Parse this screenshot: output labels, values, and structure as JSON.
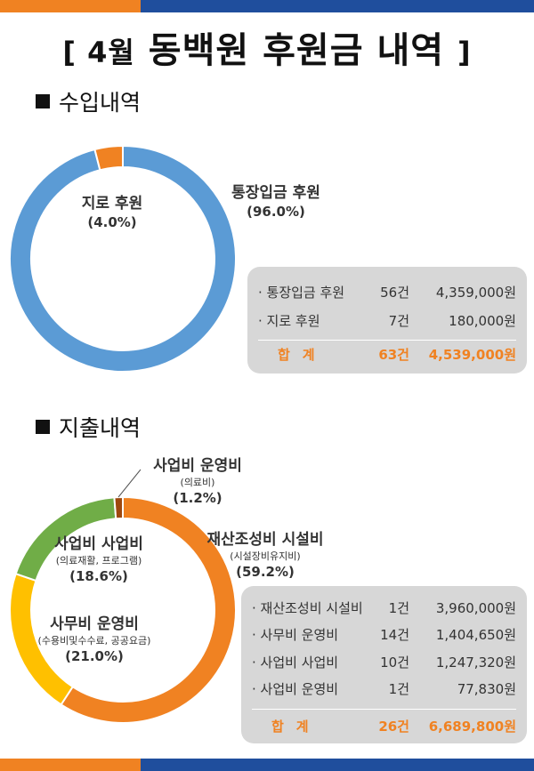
{
  "title": {
    "prefix": "[ 4월",
    "main": "동백원 후원금 내역",
    "suffix": "]"
  },
  "colors": {
    "orange": "#f08222",
    "navy": "#1f4e9d",
    "blue": "#5b9bd5",
    "yellow": "#ffc000",
    "green": "#70ad47",
    "brown": "#9e480e",
    "panel": "#d7d7d7"
  },
  "income": {
    "heading": "수입내역",
    "chart_data": {
      "type": "pie",
      "slices": [
        {
          "name": "통장입금 후원",
          "value": 96.0,
          "color": "#5b9bd5"
        },
        {
          "name": "지로 후원",
          "value": 4.0,
          "color": "#f08222"
        }
      ]
    },
    "labels": [
      {
        "name": "지로 후원",
        "pct": "(4.0%)"
      },
      {
        "name": "통장입금 후원",
        "pct": "(96.0%)"
      }
    ],
    "table": {
      "rows": [
        {
          "name": "· 통장입금 후원",
          "count": "56건",
          "amount": "4,359,000원"
        },
        {
          "name": "· 지로 후원",
          "count": "7건",
          "amount": "180,000원"
        }
      ],
      "total": {
        "name": "합계",
        "count": "63건",
        "amount": "4,539,000원"
      }
    }
  },
  "expense": {
    "heading": "지출내역",
    "chart_data": {
      "type": "pie",
      "slices": [
        {
          "name": "재산조성비 시설비",
          "value": 59.2,
          "color": "#f08222"
        },
        {
          "name": "사무비 운영비",
          "value": 21.0,
          "color": "#ffc000"
        },
        {
          "name": "사업비 사업비",
          "value": 18.6,
          "color": "#70ad47"
        },
        {
          "name": "사업비 운영비",
          "value": 1.2,
          "color": "#9e480e"
        }
      ]
    },
    "labels": [
      {
        "name": "사업비 운영비",
        "sub": "(의료비)",
        "pct": "(1.2%)"
      },
      {
        "name": "재산조성비 시설비",
        "sub": "(시설장비유지비)",
        "pct": "(59.2%)"
      },
      {
        "name": "사업비 사업비",
        "sub": "(의료재활, 프로그램)",
        "pct": "(18.6%)"
      },
      {
        "name": "사무비 운영비",
        "sub": "(수용비및수수료, 공공요금)",
        "pct": "(21.0%)"
      }
    ],
    "table": {
      "rows": [
        {
          "name": "· 재산조성비 시설비",
          "count": "1건",
          "amount": "3,960,000원"
        },
        {
          "name": "· 사무비 운영비",
          "count": "14건",
          "amount": "1,404,650원"
        },
        {
          "name": "· 사업비 사업비",
          "count": "10건",
          "amount": "1,247,320원"
        },
        {
          "name": "· 사업비 운영비",
          "count": "1건",
          "amount": "77,830원"
        }
      ],
      "total": {
        "name": "합계",
        "count": "26건",
        "amount": "6,689,800원"
      }
    }
  }
}
